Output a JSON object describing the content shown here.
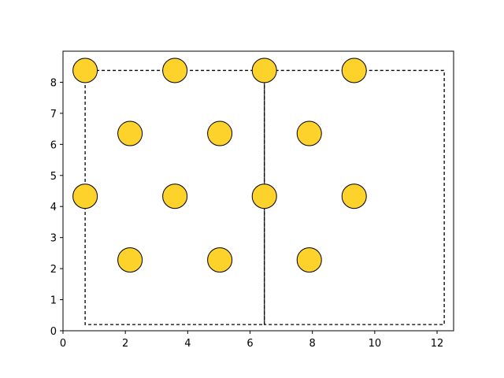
{
  "chart_data": {
    "type": "scatter",
    "x": [
      0.71,
      3.59,
      6.46,
      9.34,
      2.15,
      5.03,
      7.9,
      0.71,
      3.59,
      6.46,
      9.34,
      2.15,
      5.03,
      7.9
    ],
    "y": [
      8.38,
      8.38,
      8.38,
      8.38,
      6.35,
      6.35,
      6.35,
      4.33,
      4.33,
      4.33,
      4.33,
      2.28,
      2.28,
      2.28
    ],
    "color": "#fdd22a",
    "rectangles": [
      {
        "x0": 0.71,
        "x1": 6.46,
        "y0": 0.2,
        "y1": 8.38
      },
      {
        "x0": 6.46,
        "x1": 12.23,
        "y0": 0.2,
        "y1": 8.38
      }
    ],
    "xlim": [
      0,
      12.53
    ],
    "ylim": [
      0,
      9.0
    ],
    "xticks": [
      0,
      2,
      4,
      6,
      8,
      10,
      12
    ],
    "yticks": [
      0,
      1,
      2,
      3,
      4,
      5,
      6,
      7,
      8
    ]
  }
}
